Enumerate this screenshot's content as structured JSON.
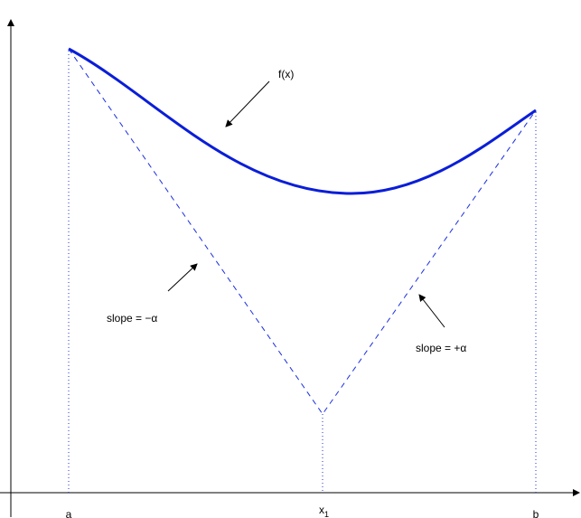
{
  "labels": {
    "curve": "f(x)",
    "left_slope": "slope = −α",
    "right_slope": "slope = +α"
  },
  "axis_labels": [
    {
      "text": "a"
    },
    {
      "text": "x",
      "subscript": "1"
    },
    {
      "text": "b"
    }
  ]
}
